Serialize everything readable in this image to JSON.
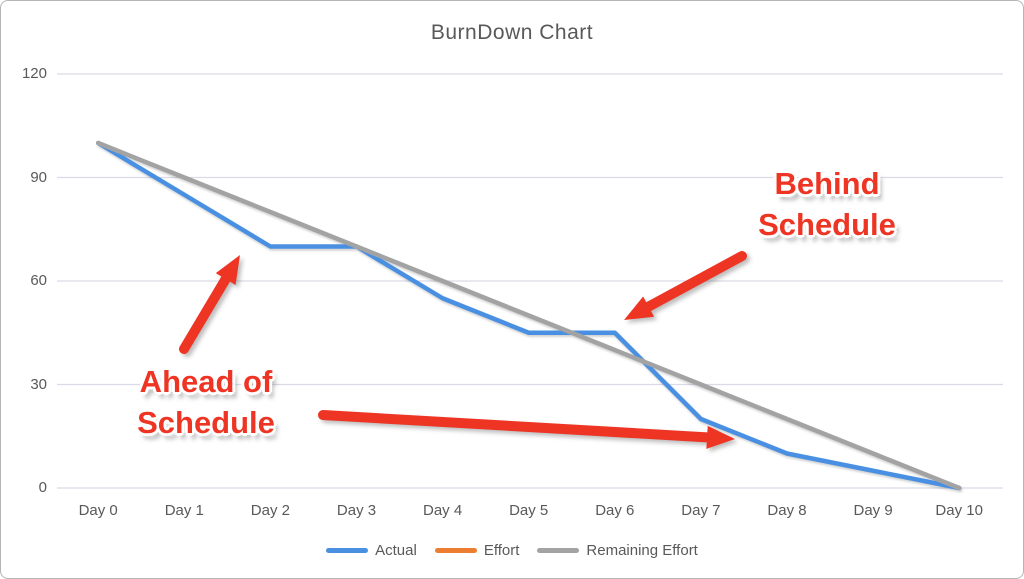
{
  "chart_data": {
    "type": "line",
    "title": "BurnDown Chart",
    "categories": [
      "Day 0",
      "Day 1",
      "Day 2",
      "Day 3",
      "Day 4",
      "Day 5",
      "Day 6",
      "Day 7",
      "Day 8",
      "Day 9",
      "Day 10"
    ],
    "series": [
      {
        "name": "Actual",
        "color": "#4a90e2",
        "values": [
          100,
          85,
          70,
          70,
          55,
          45,
          45,
          20,
          10,
          5,
          0
        ]
      },
      {
        "name": "Effort",
        "color": "#ed7d31",
        "values": []
      },
      {
        "name": "Remaining Effort",
        "color": "#a3a3a3",
        "values": [
          100,
          90,
          80,
          70,
          60,
          50,
          40,
          30,
          20,
          10,
          0
        ]
      }
    ],
    "yticks": [
      0,
      30,
      60,
      90,
      120
    ],
    "ylim": [
      0,
      120
    ],
    "grid": true,
    "legend_position": "bottom",
    "annotations": [
      {
        "id": "behind",
        "text": "Behind Schedule",
        "lines": [
          "Behind",
          "Schedule"
        ],
        "points_at": "Actual line flat at 45 on Day 5-6, above Remaining Effort line"
      },
      {
        "id": "ahead",
        "text": "Ahead of Schedule",
        "lines": [
          "Ahead of",
          "Schedule"
        ],
        "points_at": "Actual line below Remaining Effort line at Day 2 and Day 7-8"
      }
    ],
    "arrows": [
      {
        "from": [
          183,
          348
        ],
        "to": [
          239,
          254
        ]
      },
      {
        "from": [
          741,
          255
        ],
        "to": [
          623,
          319
        ]
      },
      {
        "from": [
          322,
          414
        ],
        "to": [
          734,
          438
        ]
      }
    ],
    "annotation_color": "#ee3524",
    "gridline_color": "#dadae8",
    "text_color": "#595959"
  }
}
